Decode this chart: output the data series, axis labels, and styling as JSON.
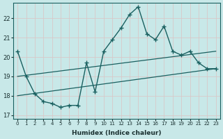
{
  "xlabel": "Humidex (Indice chaleur)",
  "background_color": "#c8e8e8",
  "grid_color": "#b8d8d8",
  "line_color": "#1a6060",
  "xlim": [
    -0.5,
    23.5
  ],
  "ylim": [
    16.8,
    22.8
  ],
  "xticks": [
    0,
    1,
    2,
    3,
    4,
    5,
    6,
    7,
    8,
    9,
    10,
    11,
    12,
    13,
    14,
    15,
    16,
    17,
    18,
    19,
    20,
    21,
    22,
    23
  ],
  "yticks": [
    17,
    18,
    19,
    20,
    21,
    22
  ],
  "main_x": [
    0,
    1,
    2,
    3,
    4,
    5,
    6,
    7,
    8,
    9,
    10,
    11,
    12,
    13,
    14,
    15,
    16,
    17,
    18,
    19,
    20,
    21,
    22,
    23
  ],
  "main_y": [
    20.3,
    19.0,
    18.1,
    17.7,
    17.6,
    17.4,
    17.5,
    17.5,
    19.7,
    18.2,
    20.3,
    20.9,
    21.5,
    22.2,
    22.6,
    21.2,
    20.9,
    21.6,
    20.3,
    20.1,
    20.3,
    19.7,
    19.4,
    19.4
  ],
  "line1_x": [
    0,
    23
  ],
  "line1_y": [
    19.0,
    20.3
  ],
  "line2_x": [
    0,
    23
  ],
  "line2_y": [
    18.0,
    19.4
  ]
}
